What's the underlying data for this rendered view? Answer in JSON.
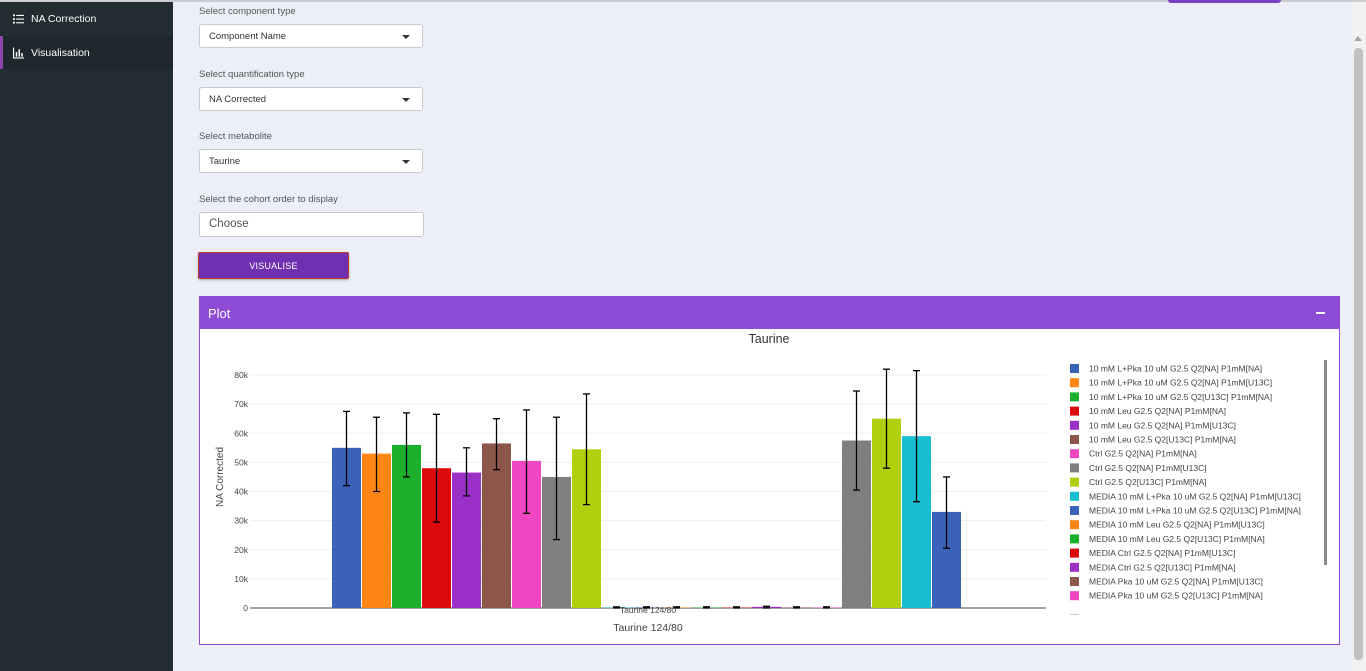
{
  "sidebar": {
    "items": [
      {
        "label": "NA Correction",
        "icon": "list-icon"
      },
      {
        "label": "Visualisation",
        "icon": "bar-chart-icon"
      }
    ]
  },
  "form": {
    "component_type": {
      "label": "Select component type",
      "value": "Component Name"
    },
    "quantification_type": {
      "label": "Select quantification type",
      "value": "NA Corrected"
    },
    "metabolite": {
      "label": "Select metabolite",
      "value": "Taurine"
    },
    "cohort_order": {
      "label": "Select the cohort order to display",
      "placeholder": "Choose"
    },
    "visualise_label": "VISUALISE"
  },
  "plot_panel": {
    "title": "Plot",
    "collapse_icon": "minus-icon",
    "header_color": "#8e4bd6"
  },
  "chart_data": {
    "type": "bar",
    "title": "Taurine",
    "xlabel": "Taurine 124/80",
    "ylabel": "NA Corrected",
    "ylim": [
      0,
      80000
    ],
    "yticks": [
      "0",
      "10k",
      "20k",
      "30k",
      "40k",
      "50k",
      "60k",
      "70k",
      "80k"
    ],
    "categories": [
      "Taurine 124/80"
    ],
    "legend_position": "right",
    "series": [
      {
        "name": "10 mM L+Pka 10 uM G2.5 Q2[NA] P1mM[NA]",
        "value": 55000,
        "err_low": 42000,
        "err_high": 67500,
        "color": "#3a62b8"
      },
      {
        "name": "10 mM L+Pka 10 uM G2.5 Q2[NA] P1mM[U13C]",
        "value": 53000,
        "err_low": 40000,
        "err_high": 65500,
        "color": "#ff8614"
      },
      {
        "name": "10 mM L+Pka 10 uM G2.5 Q2[U13C] P1mM[NA]",
        "value": 56000,
        "err_low": 45000,
        "err_high": 67000,
        "color": "#1ab02c"
      },
      {
        "name": "10 mM Leu G2.5 Q2[NA] P1mM[NA]",
        "value": 48000,
        "err_low": 29500,
        "err_high": 66500,
        "color": "#dc0a0a"
      },
      {
        "name": "10 mM Leu G2.5 Q2[NA] P1mM[U13C]",
        "value": 46500,
        "err_low": 38500,
        "err_high": 55000,
        "color": "#9b30c7"
      },
      {
        "name": "10 mM Leu G2.5 Q2[U13C] P1mM[NA]",
        "value": 56500,
        "err_low": 47500,
        "err_high": 65000,
        "color": "#8c564b"
      },
      {
        "name": "Ctrl G2.5 Q2[NA] P1mM[NA]",
        "value": 50500,
        "err_low": 32500,
        "err_high": 68000,
        "color": "#ef47c1"
      },
      {
        "name": "Ctrl G2.5 Q2[NA] P1mM[U13C]",
        "value": 45000,
        "err_low": 23500,
        "err_high": 65500,
        "color": "#7f7f7f"
      },
      {
        "name": "Ctrl G2.5 Q2[U13C] P1mM[NA]",
        "value": 54500,
        "err_low": 35500,
        "err_high": 73500,
        "color": "#b0cf0d"
      },
      {
        "name": "MEDIA 10 mM L+Pka 10 uM G2.5 Q2[NA] P1mM[U13C]",
        "value": 150,
        "err_low": 0,
        "err_high": 400,
        "color": "#17becf"
      },
      {
        "name": "MEDIA 10 mM L+Pka 10 uM G2.5 Q2[U13C] P1mM[NA]",
        "value": 150,
        "err_low": 0,
        "err_high": 400,
        "color": "#3a62b8"
      },
      {
        "name": "MEDIA 10 mM Leu G2.5 Q2[NA] P1mM[U13C]",
        "value": 150,
        "err_low": 0,
        "err_high": 400,
        "color": "#ff8614"
      },
      {
        "name": "MEDIA 10 mM Leu G2.5 Q2[U13C] P1mM[NA]",
        "value": 150,
        "err_low": 0,
        "err_high": 400,
        "color": "#1ab02c"
      },
      {
        "name": "MEDIA Ctrl G2.5 Q2[NA] P1mM[U13C]",
        "value": 150,
        "err_low": 0,
        "err_high": 400,
        "color": "#dc0a0a"
      },
      {
        "name": "MEDIA Ctrl G2.5 Q2[U13C] P1mM[NA]",
        "value": 400,
        "err_low": 0,
        "err_high": 600,
        "color": "#9b30c7"
      },
      {
        "name": "MEDIA Pka 10 uM G2.5 Q2[NA] P1mM[U13C]",
        "value": 150,
        "err_low": 0,
        "err_high": 400,
        "color": "#8c564b"
      },
      {
        "name": "MEDIA Pka 10 uM G2.5 Q2[U13C] P1mM[NA]",
        "value": 150,
        "err_low": 0,
        "err_high": 400,
        "color": "#ef47c1"
      },
      {
        "name": "",
        "value": 57500,
        "err_low": 40500,
        "err_high": 74500,
        "color": "#7f7f7f"
      },
      {
        "name": "",
        "value": 65000,
        "err_low": 48000,
        "err_high": 82000,
        "color": "#b0cf0d"
      },
      {
        "name": "",
        "value": 59000,
        "err_low": 36500,
        "err_high": 81500,
        "color": "#17becf"
      },
      {
        "name": "",
        "value": 33000,
        "err_low": 20500,
        "err_high": 45000,
        "color": "#3a62b8"
      }
    ]
  }
}
